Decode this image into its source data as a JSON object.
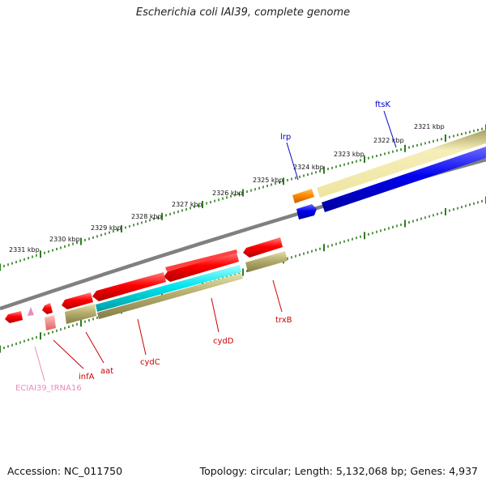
{
  "title": "Escherichia coli IAI39, complete genome",
  "footer": {
    "accession": "Accession: NC_011750",
    "summary": "Topology: circular; Length: 5,132,068 bp; Genes: 4,937"
  },
  "scale_labels": [
    "2321 kbp",
    "2322 kbp",
    "2323 kbp",
    "2324 kbp",
    "2325 kbp",
    "2326 kbp",
    "2327 kbp",
    "2328 kbp",
    "2329 kbp",
    "2330 kbp",
    "2331 kbp"
  ],
  "gene_labels": {
    "ftsK": "ftsK",
    "lrp": "lrp",
    "trxB": "trxB",
    "cydD": "cydD",
    "cydC": "cydC",
    "aat": "aat",
    "infA": "infA",
    "trna": "ECIAI39_tRNA16"
  },
  "colors": {
    "backbone": "#808080",
    "ticks": "#2e7d1f",
    "cds_red": "#ff0000",
    "cds_blue": "#0000ee",
    "cds_orange": "#ff8c00",
    "cds_cyan": "#00e5ee",
    "feature_olive": "#b5ad6e",
    "feature_light": "#f3e9a6",
    "label_red": "#cc0000",
    "label_blue": "#0000cc",
    "label_pink": "#e88bbd"
  }
}
